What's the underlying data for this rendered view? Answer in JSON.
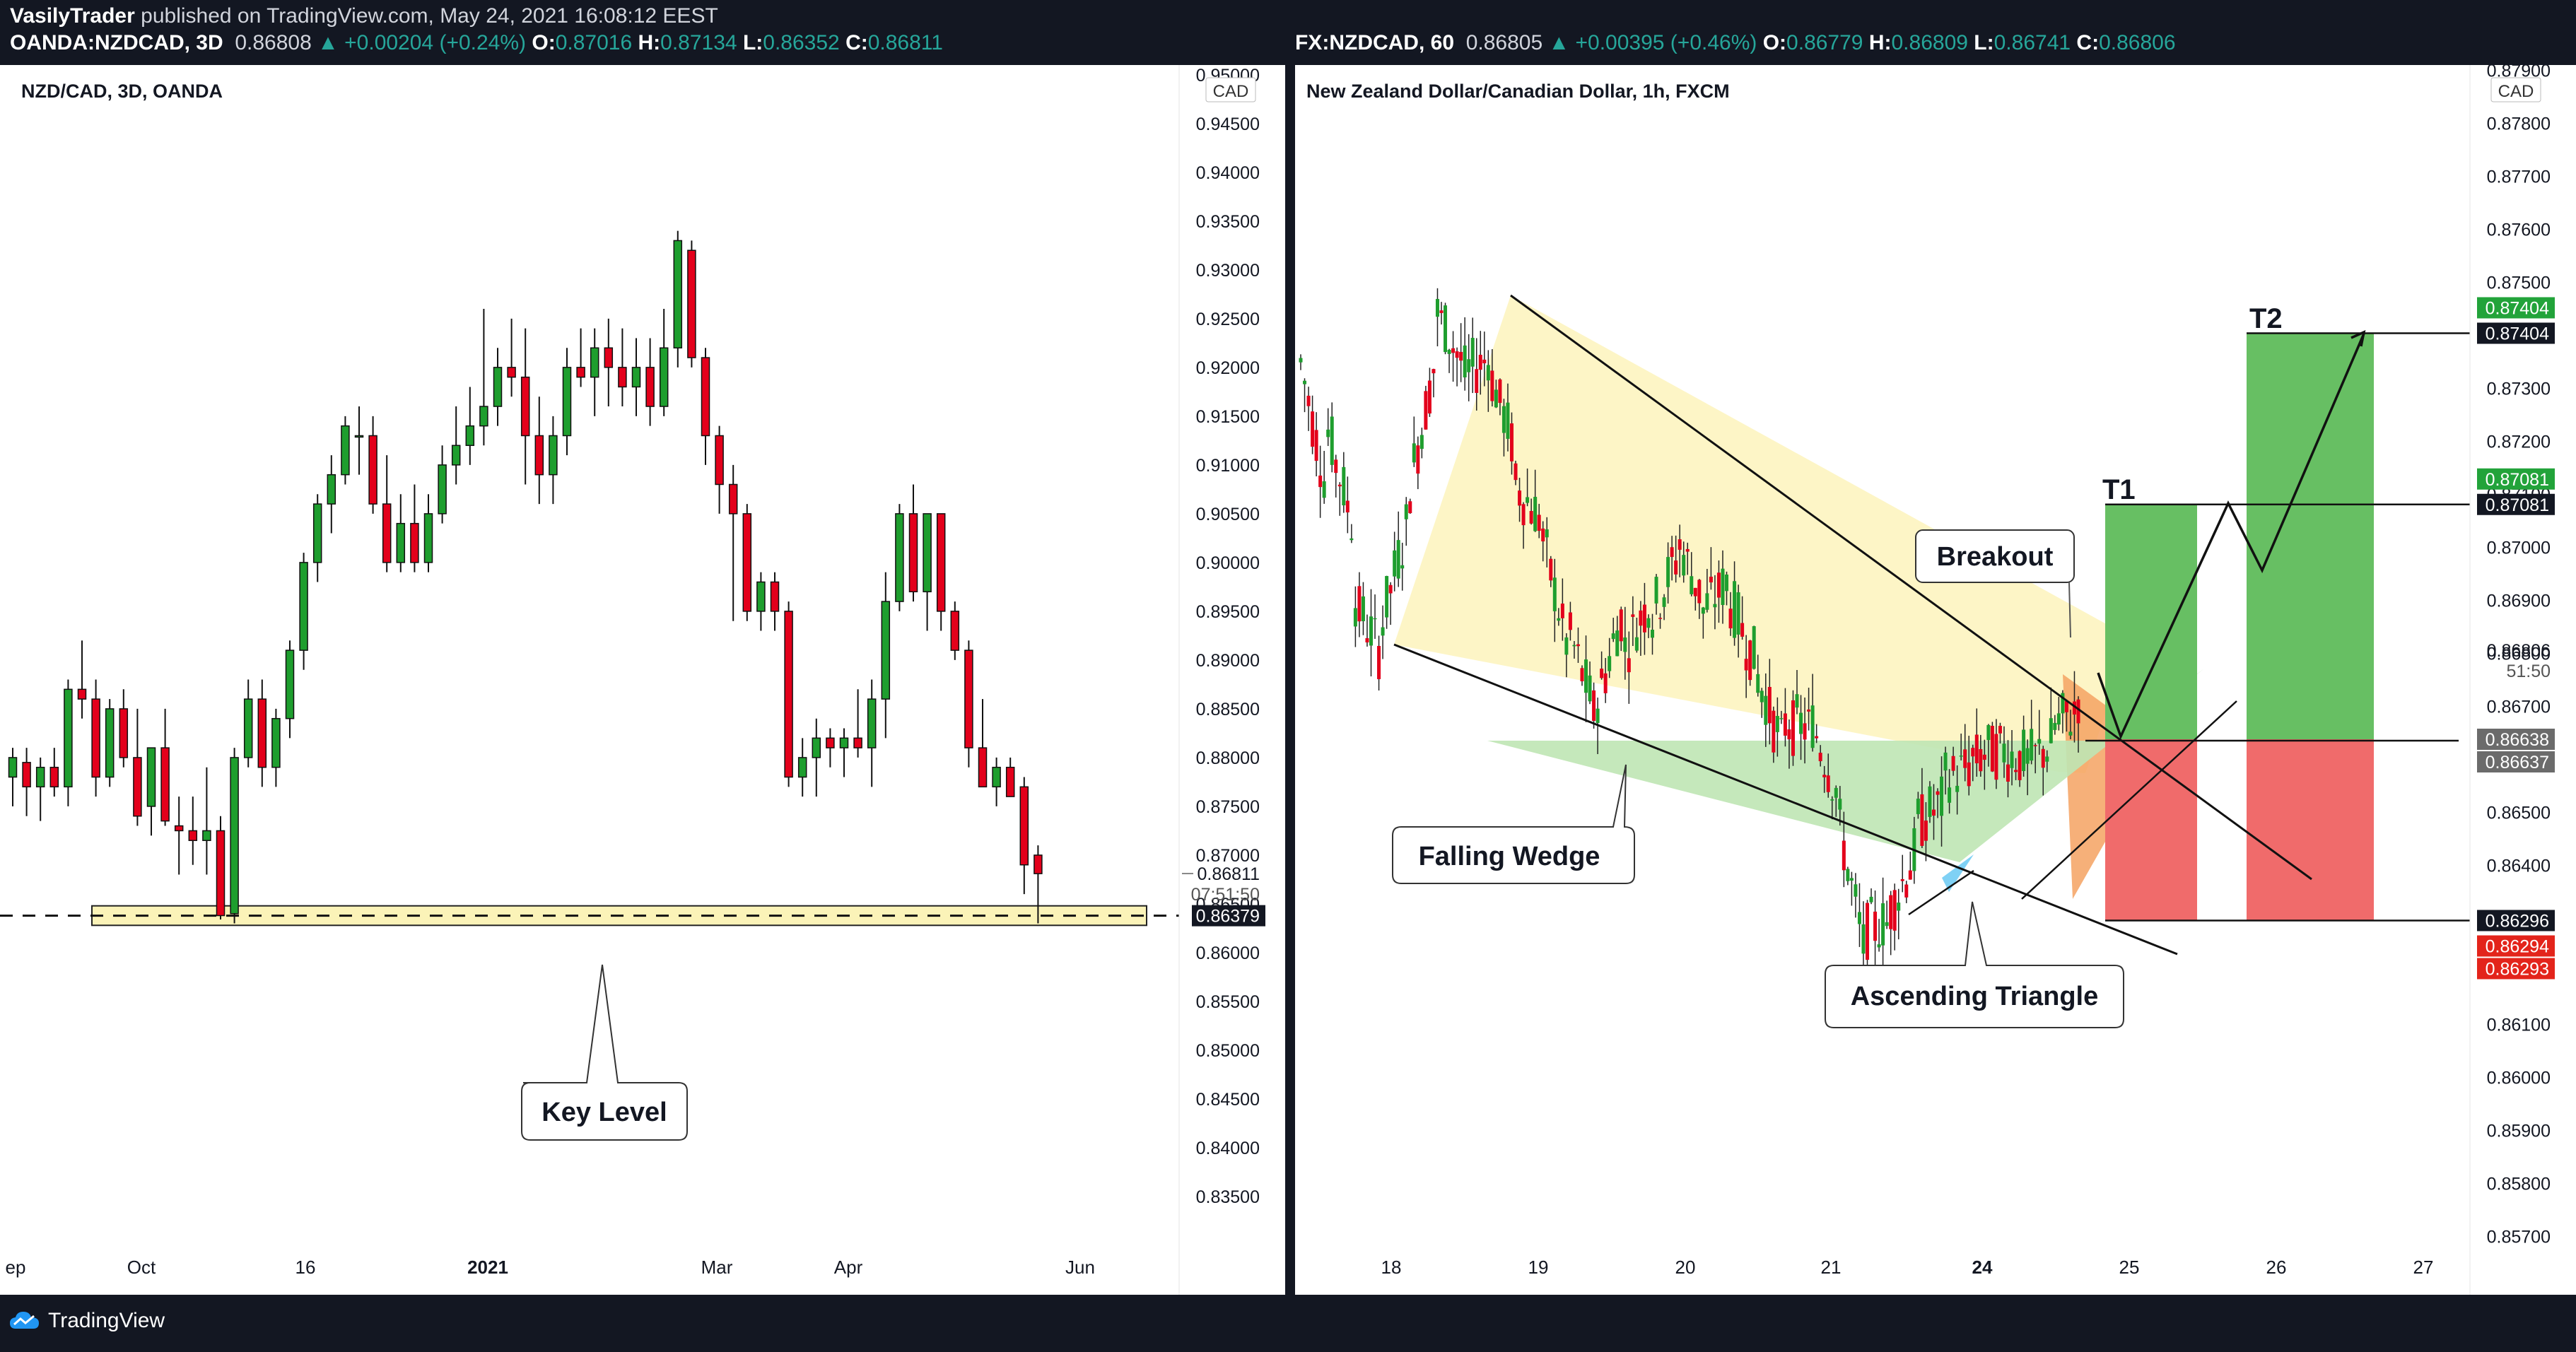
{
  "header": {
    "author": "VasilyTrader",
    "published": "published on TradingView.com, May 24, 2021 16:08:12 EEST"
  },
  "left_ohlc": {
    "symbol": "OANDA:NZDCAD, 3D",
    "last": "0.86808",
    "change": "▲ +0.00204 (+0.24%)",
    "o_label": "O:",
    "o": "0.87016",
    "h_label": "H:",
    "h": "0.87134",
    "l_label": "L:",
    "l": "0.86352",
    "c_label": "C:",
    "c": "0.86811"
  },
  "right_ohlc": {
    "symbol": "FX:NZDCAD, 60",
    "last": "0.86805",
    "change": "▲ +0.00395 (+0.46%)",
    "o_label": "O:",
    "o": "0.86779",
    "h_label": "H:",
    "h": "0.86809",
    "l_label": "L:",
    "l": "0.86741",
    "c_label": "C:",
    "c": "0.86806"
  },
  "footer": {
    "brand": "TradingView"
  },
  "colors": {
    "up": "#26a69a",
    "candle_up": "#1e9e2e",
    "candle_down": "#e3001b",
    "background": "#131722"
  },
  "chart_data": [
    {
      "type": "candlestick",
      "title": "NZD/CAD, 3D, OANDA",
      "currency": "CAD",
      "ylim": [
        0.83,
        0.951
      ],
      "y_ticks": [
        "0.95000",
        "0.94500",
        "0.94000",
        "0.93500",
        "0.93000",
        "0.92500",
        "0.92000",
        "0.91500",
        "0.91000",
        "0.90500",
        "0.90000",
        "0.89500",
        "0.89000",
        "0.88500",
        "0.88000",
        "0.87500",
        "0.87000",
        "0.86500",
        "0.86000",
        "0.85500",
        "0.85000",
        "0.84500",
        "0.84000",
        "0.83500"
      ],
      "x_ticks": [
        "ep",
        "Oct",
        "16",
        "2021",
        "Mar",
        "Apr",
        "Jun"
      ],
      "x_ticks_bold": [
        "2021"
      ],
      "price_labels": {
        "last": "0.86811",
        "countdown": "07:51:50",
        "key": "0.86379"
      },
      "annotations": [
        "Key Level"
      ],
      "key_level": {
        "low": 0.8628,
        "high": 0.8648,
        "line": 0.86379
      },
      "candles": [
        [
          0.878,
          0.881,
          0.875,
          0.88
        ],
        [
          0.8795,
          0.881,
          0.874,
          0.877
        ],
        [
          0.877,
          0.88,
          0.8735,
          0.879
        ],
        [
          0.879,
          0.881,
          0.876,
          0.877
        ],
        [
          0.877,
          0.888,
          0.875,
          0.887
        ],
        [
          0.887,
          0.892,
          0.884,
          0.886
        ],
        [
          0.886,
          0.888,
          0.876,
          0.878
        ],
        [
          0.878,
          0.886,
          0.877,
          0.885
        ],
        [
          0.885,
          0.887,
          0.879,
          0.88
        ],
        [
          0.88,
          0.885,
          0.873,
          0.874
        ],
        [
          0.875,
          0.881,
          0.872,
          0.881
        ],
        [
          0.881,
          0.885,
          0.873,
          0.8735
        ],
        [
          0.873,
          0.876,
          0.868,
          0.8725
        ],
        [
          0.8725,
          0.876,
          0.869,
          0.8715
        ],
        [
          0.8715,
          0.879,
          0.868,
          0.8725
        ],
        [
          0.8725,
          0.874,
          0.8634,
          0.8638
        ],
        [
          0.864,
          0.881,
          0.863,
          0.88
        ],
        [
          0.88,
          0.888,
          0.879,
          0.886
        ],
        [
          0.886,
          0.888,
          0.877,
          0.879
        ],
        [
          0.879,
          0.885,
          0.877,
          0.884
        ],
        [
          0.884,
          0.892,
          0.882,
          0.891
        ],
        [
          0.891,
          0.901,
          0.889,
          0.9
        ],
        [
          0.9,
          0.907,
          0.898,
          0.906
        ],
        [
          0.906,
          0.911,
          0.903,
          0.909
        ],
        [
          0.909,
          0.915,
          0.908,
          0.914
        ],
        [
          0.913,
          0.916,
          0.909,
          0.913
        ],
        [
          0.913,
          0.915,
          0.905,
          0.906
        ],
        [
          0.906,
          0.911,
          0.899,
          0.9
        ],
        [
          0.9,
          0.907,
          0.899,
          0.904
        ],
        [
          0.904,
          0.908,
          0.899,
          0.9
        ],
        [
          0.9,
          0.907,
          0.899,
          0.905
        ],
        [
          0.905,
          0.912,
          0.904,
          0.91
        ],
        [
          0.91,
          0.916,
          0.908,
          0.912
        ],
        [
          0.912,
          0.918,
          0.91,
          0.914
        ],
        [
          0.914,
          0.926,
          0.912,
          0.916
        ],
        [
          0.916,
          0.922,
          0.914,
          0.92
        ],
        [
          0.92,
          0.925,
          0.917,
          0.919
        ],
        [
          0.919,
          0.924,
          0.908,
          0.913
        ],
        [
          0.913,
          0.917,
          0.906,
          0.909
        ],
        [
          0.909,
          0.915,
          0.906,
          0.913
        ],
        [
          0.913,
          0.922,
          0.911,
          0.92
        ],
        [
          0.92,
          0.924,
          0.918,
          0.919
        ],
        [
          0.919,
          0.924,
          0.915,
          0.922
        ],
        [
          0.922,
          0.925,
          0.916,
          0.92
        ],
        [
          0.92,
          0.924,
          0.916,
          0.918
        ],
        [
          0.918,
          0.923,
          0.915,
          0.92
        ],
        [
          0.92,
          0.923,
          0.914,
          0.916
        ],
        [
          0.916,
          0.926,
          0.915,
          0.922
        ],
        [
          0.922,
          0.934,
          0.92,
          0.933
        ],
        [
          0.932,
          0.933,
          0.92,
          0.921
        ],
        [
          0.921,
          0.922,
          0.91,
          0.913
        ],
        [
          0.913,
          0.914,
          0.905,
          0.908
        ],
        [
          0.908,
          0.91,
          0.894,
          0.905
        ],
        [
          0.905,
          0.906,
          0.894,
          0.895
        ],
        [
          0.895,
          0.899,
          0.893,
          0.898
        ],
        [
          0.898,
          0.899,
          0.893,
          0.895
        ],
        [
          0.895,
          0.896,
          0.877,
          0.878
        ],
        [
          0.878,
          0.882,
          0.876,
          0.88
        ],
        [
          0.88,
          0.884,
          0.876,
          0.882
        ],
        [
          0.882,
          0.883,
          0.879,
          0.881
        ],
        [
          0.881,
          0.883,
          0.878,
          0.882
        ],
        [
          0.882,
          0.887,
          0.88,
          0.881
        ],
        [
          0.881,
          0.888,
          0.877,
          0.886
        ],
        [
          0.886,
          0.899,
          0.882,
          0.896
        ],
        [
          0.896,
          0.906,
          0.895,
          0.905
        ],
        [
          0.905,
          0.908,
          0.896,
          0.897
        ],
        [
          0.897,
          0.905,
          0.893,
          0.905
        ],
        [
          0.905,
          0.905,
          0.893,
          0.895
        ],
        [
          0.895,
          0.896,
          0.89,
          0.891
        ],
        [
          0.891,
          0.892,
          0.879,
          0.881
        ],
        [
          0.881,
          0.886,
          0.877,
          0.877
        ],
        [
          0.877,
          0.88,
          0.875,
          0.879
        ],
        [
          0.879,
          0.88,
          0.876,
          0.876
        ],
        [
          0.877,
          0.878,
          0.866,
          0.869
        ],
        [
          0.87,
          0.871,
          0.863,
          0.8681
        ]
      ]
    },
    {
      "type": "candlestick",
      "title": "New Zealand Dollar/Canadian Dollar, 1h, FXCM",
      "currency": "CAD",
      "ylim": [
        0.8567,
        0.8791
      ],
      "y_ticks": [
        "0.87900",
        "0.87800",
        "0.87700",
        "0.87600",
        "0.87500",
        "0.87400",
        "0.87300",
        "0.87200",
        "0.87100",
        "0.87000",
        "0.86900",
        "0.86800",
        "0.86700",
        "0.86600",
        "0.86500",
        "0.86400",
        "0.86300",
        "0.86200",
        "0.86100",
        "0.86000",
        "0.85900",
        "0.85800",
        "0.85700"
      ],
      "x_ticks": [
        "18",
        "19",
        "20",
        "21",
        "24",
        "25",
        "26",
        "27"
      ],
      "x_ticks_bold": [
        "24"
      ],
      "price_labels": {
        "last": "0.86806",
        "countdown": "51:50",
        "t2": "0.87404",
        "t1": "0.87081",
        "gray1": "0.86638",
        "gray2": "0.86637",
        "stop1": "0.86296",
        "stop2": "0.86294",
        "stop3": "0.86293"
      },
      "annotations": [
        "Breakout",
        "Falling Wedge",
        "Ascending Triangle",
        "T1",
        "T2"
      ],
      "levels": {
        "t2": 0.87404,
        "t1": 0.87081,
        "entry": 0.86638,
        "stop": 0.86296
      },
      "trend_points": [
        [
          0.8735,
          0.871
        ],
        [
          0.8722,
          0.8703
        ],
        [
          0.869,
          0.868
        ],
        [
          0.8685,
          0.8705
        ],
        [
          0.871,
          0.8735
        ],
        [
          0.8745,
          0.8735
        ],
        [
          0.8732,
          0.8736
        ],
        [
          0.8734,
          0.8718
        ],
        [
          0.8712,
          0.8705
        ],
        [
          0.8702,
          0.868
        ],
        [
          0.8684,
          0.8668
        ],
        [
          0.867,
          0.8688
        ],
        [
          0.868,
          0.869
        ],
        [
          0.8686,
          0.8698
        ],
        [
          0.8702,
          0.869
        ],
        [
          0.8688,
          0.8694
        ],
        [
          0.869,
          0.8678
        ],
        [
          0.8676,
          0.8662
        ],
        [
          0.8667,
          0.8666
        ],
        [
          0.8668,
          0.8654
        ],
        [
          0.865,
          0.8624
        ],
        [
          0.8628,
          0.8629
        ],
        [
          0.8632,
          0.8643
        ],
        [
          0.8648,
          0.8652
        ],
        [
          0.8656,
          0.8659
        ],
        [
          0.866,
          0.8662
        ],
        [
          0.8662,
          0.866
        ],
        [
          0.8659,
          0.8663
        ],
        [
          0.8666,
          0.8669
        ],
        [
          0.8672,
          0.8681
        ]
      ]
    }
  ]
}
